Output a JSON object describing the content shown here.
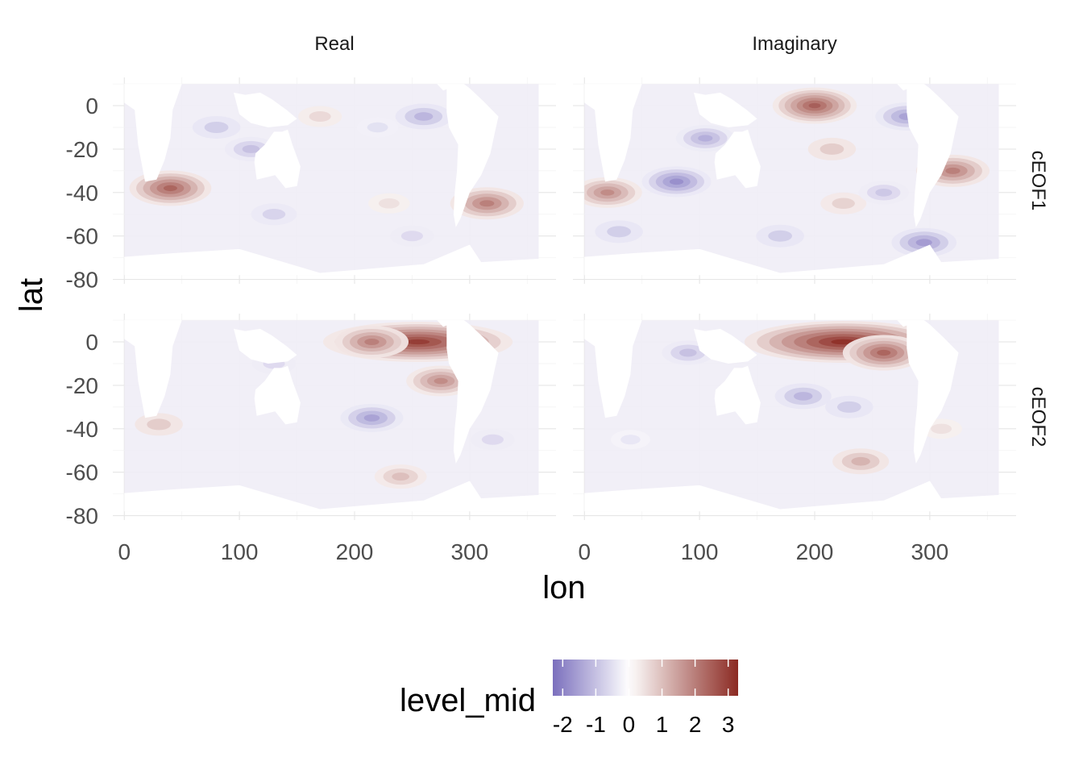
{
  "chart_data": {
    "type": "heatmap",
    "xlabel": "lon",
    "ylabel": "lat",
    "xlim": [
      -10,
      375
    ],
    "ylim": [
      -82,
      13
    ],
    "x_ticks": [
      0,
      100,
      200,
      300
    ],
    "y_ticks": [
      0,
      -20,
      -40,
      -60,
      -80
    ],
    "x_tick_labels": [
      "0",
      "100",
      "200",
      "300"
    ],
    "y_tick_labels": [
      "0",
      "-20",
      "-40",
      "-60",
      "-80"
    ],
    "grid": true,
    "facets": {
      "columns": [
        "Real",
        "Imaginary"
      ],
      "rows": [
        "cEOF1",
        "cEOF2"
      ]
    },
    "legend": {
      "title": "level_mid",
      "position": "bottom",
      "range": [
        -2.3,
        3.3
      ],
      "ticks": [
        -2,
        -1,
        0,
        1,
        2,
        3
      ],
      "tick_labels": [
        "-2",
        "-1",
        "0",
        "1",
        "2",
        "3"
      ],
      "color_low": "#7b6fbd",
      "color_mid": "#ffffff",
      "color_high": "#8b2a22"
    },
    "panels": [
      {
        "col": "Real",
        "row": "cEOF1",
        "blobs": [
          {
            "lon": 40,
            "lat": -38,
            "value": 2.4
          },
          {
            "lon": 315,
            "lat": -45,
            "value": 2.0
          },
          {
            "lon": 170,
            "lat": -5,
            "value": 0.6
          },
          {
            "lon": 230,
            "lat": -45,
            "value": 0.5
          },
          {
            "lon": 110,
            "lat": -20,
            "value": -1.0
          },
          {
            "lon": 260,
            "lat": -5,
            "value": -1.2
          },
          {
            "lon": 80,
            "lat": -10,
            "value": -0.8
          },
          {
            "lon": 250,
            "lat": -60,
            "value": -0.6
          },
          {
            "lon": 130,
            "lat": -50,
            "value": -0.7
          },
          {
            "lon": 220,
            "lat": -10,
            "value": -0.5
          }
        ]
      },
      {
        "col": "Imaginary",
        "row": "cEOF1",
        "blobs": [
          {
            "lon": 200,
            "lat": 0,
            "value": 2.5
          },
          {
            "lon": 320,
            "lat": -30,
            "value": 2.0
          },
          {
            "lon": 20,
            "lat": -40,
            "value": 1.8
          },
          {
            "lon": 215,
            "lat": -20,
            "value": 0.8
          },
          {
            "lon": 225,
            "lat": -45,
            "value": 0.7
          },
          {
            "lon": 80,
            "lat": -35,
            "value": -1.8
          },
          {
            "lon": 280,
            "lat": -5,
            "value": -1.5
          },
          {
            "lon": 295,
            "lat": -63,
            "value": -1.6
          },
          {
            "lon": 105,
            "lat": -15,
            "value": -1.3
          },
          {
            "lon": 30,
            "lat": -58,
            "value": -0.8
          },
          {
            "lon": 170,
            "lat": -60,
            "value": -0.8
          },
          {
            "lon": 260,
            "lat": -40,
            "value": -0.9
          }
        ]
      },
      {
        "col": "Real",
        "row": "cEOF2",
        "blobs": [
          {
            "lon": 255,
            "lat": 0,
            "value": 3.0
          },
          {
            "lon": 215,
            "lat": 0,
            "value": 2.0
          },
          {
            "lon": 275,
            "lat": -18,
            "value": 1.8
          },
          {
            "lon": 240,
            "lat": -62,
            "value": 1.0
          },
          {
            "lon": 30,
            "lat": -38,
            "value": 0.8
          },
          {
            "lon": 215,
            "lat": -35,
            "value": -1.5
          },
          {
            "lon": 130,
            "lat": -10,
            "value": -0.6
          },
          {
            "lon": 320,
            "lat": -45,
            "value": -0.6
          }
        ]
      },
      {
        "col": "Imaginary",
        "row": "cEOF2",
        "blobs": [
          {
            "lon": 225,
            "lat": 0,
            "value": 3.2
          },
          {
            "lon": 260,
            "lat": -5,
            "value": 2.4
          },
          {
            "lon": 240,
            "lat": -55,
            "value": 1.2
          },
          {
            "lon": 190,
            "lat": -25,
            "value": -1.2
          },
          {
            "lon": 230,
            "lat": -30,
            "value": -0.8
          },
          {
            "lon": 90,
            "lat": -5,
            "value": -1.0
          },
          {
            "lon": 310,
            "lat": -40,
            "value": 0.5
          },
          {
            "lon": 40,
            "lat": -45,
            "value": -0.4
          }
        ]
      }
    ]
  }
}
